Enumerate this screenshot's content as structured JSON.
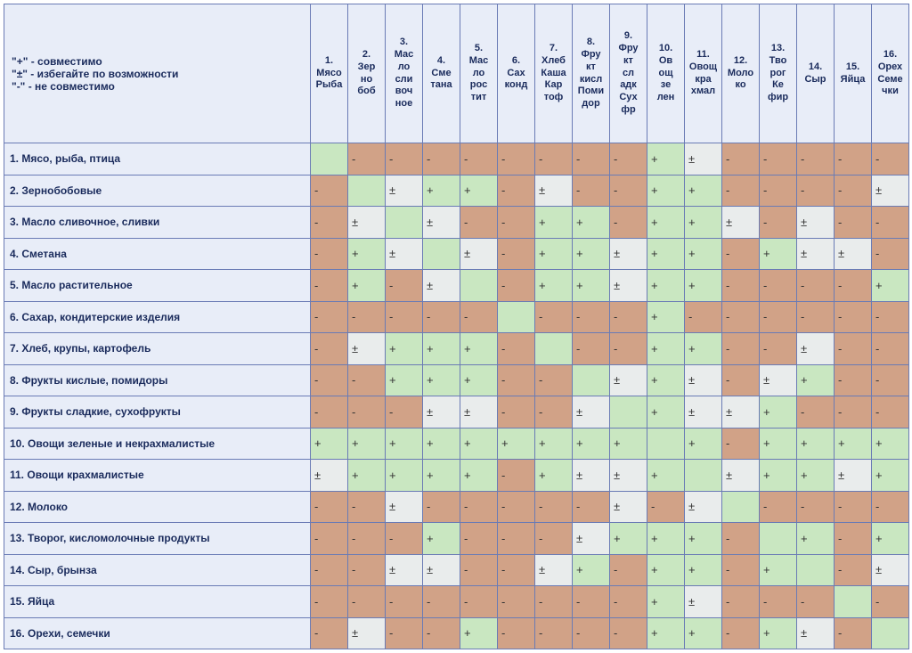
{
  "legend": {
    "plus": "\"+\" - совместимо",
    "pm": "\"±\" - избегайте по возможности",
    "minus": "\"-\" - не совместимо"
  },
  "colors": {
    "plus": "#c9e7c1",
    "minus": "#d1a287",
    "pm": "#e9ecec",
    "diag": "#c9e7c1",
    "header_bg": "#e8edf8",
    "border": "#6a7bb5"
  },
  "cell_font_size": 13,
  "header_font_size": 11,
  "rowlabel_font_size": 12,
  "columns": [
    {
      "num": "1.",
      "lines": [
        "Мясо",
        "Рыба"
      ]
    },
    {
      "num": "2.",
      "lines": [
        "Зер",
        "но",
        "боб"
      ]
    },
    {
      "num": "3.",
      "lines": [
        "Мас",
        "ло",
        "сли",
        "воч",
        "ное"
      ]
    },
    {
      "num": "4.",
      "lines": [
        "Сме",
        "тана"
      ]
    },
    {
      "num": "5.",
      "lines": [
        "Мас",
        "ло",
        "рос",
        "тит"
      ]
    },
    {
      "num": "6.",
      "lines": [
        "Сах",
        "конд"
      ]
    },
    {
      "num": "7.",
      "lines": [
        "Хлеб",
        "Каша",
        "Кар",
        "тоф"
      ]
    },
    {
      "num": "8.",
      "lines": [
        "Фру",
        "кт",
        "кисл",
        "Поми",
        "дор"
      ]
    },
    {
      "num": "9.",
      "lines": [
        "Фру",
        "кт",
        "сл",
        "адк",
        "Сух",
        "фр"
      ]
    },
    {
      "num": "10.",
      "lines": [
        "Ов",
        "ощ",
        "зе",
        "лен"
      ]
    },
    {
      "num": "11.",
      "lines": [
        "Овощ",
        "кра",
        "хмал"
      ]
    },
    {
      "num": "12.",
      "lines": [
        "Моло",
        "ко"
      ]
    },
    {
      "num": "13.",
      "lines": [
        "Тво",
        "рог",
        "Ке",
        "фир"
      ]
    },
    {
      "num": "14.",
      "lines": [
        "Сыр"
      ]
    },
    {
      "num": "15.",
      "lines": [
        "Яйца"
      ]
    },
    {
      "num": "16.",
      "lines": [
        "Орех",
        "Семе",
        "чки"
      ]
    }
  ],
  "rows": [
    "1. Мясо, рыба, птица",
    "2. Зернобобовые",
    "3. Масло сливочное, сливки",
    "4. Сметана",
    "5. Масло растительное",
    "6. Сахар, кондитерские изделия",
    "7. Хлеб, крупы, картофель",
    "8. Фрукты кислые, помидоры",
    "9. Фрукты сладкие, сухофрукты",
    "10. Овощи зеленые и некрахмалистые",
    "11. Овощи крахмалистые",
    "12. Молоко",
    "13. Творог, кисломолочные продукты",
    "14. Сыр, брынза",
    "15. Яйца",
    "16. Орехи, семечки"
  ],
  "matrix": [
    [
      "",
      "-",
      "-",
      "-",
      "-",
      "-",
      "-",
      "-",
      "-",
      "+",
      "±",
      "-",
      "-",
      "-",
      "-",
      "-"
    ],
    [
      "-",
      "",
      "±",
      "+",
      "+",
      "-",
      "±",
      "-",
      "-",
      "+",
      "+",
      "-",
      "-",
      "-",
      "-",
      "±"
    ],
    [
      "-",
      "±",
      "",
      "±",
      "-",
      "-",
      "+",
      "+",
      "-",
      "+",
      "+",
      "±",
      "-",
      "±",
      "-",
      "-"
    ],
    [
      "-",
      "+",
      "±",
      "",
      "±",
      "-",
      "+",
      "+",
      "±",
      "+",
      "+",
      "-",
      "+",
      "±",
      "±",
      "-"
    ],
    [
      "-",
      "+",
      "-",
      "±",
      "",
      "-",
      "+",
      "+",
      "±",
      "+",
      "+",
      "-",
      "-",
      "-",
      "-",
      "+"
    ],
    [
      "-",
      "-",
      "-",
      "-",
      "-",
      "",
      "-",
      "-",
      "-",
      "+",
      "-",
      "-",
      "-",
      "-",
      "-",
      "-"
    ],
    [
      "-",
      "±",
      "+",
      "+",
      "+",
      "-",
      "",
      "-",
      "-",
      "+",
      "+",
      "-",
      "-",
      "±",
      "-",
      "-"
    ],
    [
      "-",
      "-",
      "+",
      "+",
      "+",
      "-",
      "-",
      "",
      "±",
      "+",
      "±",
      "-",
      "±",
      "+",
      "-",
      "-"
    ],
    [
      "-",
      "-",
      "-",
      "±",
      "±",
      "-",
      "-",
      "±",
      "",
      "+",
      "±",
      "±",
      "+",
      "-",
      "-",
      "-"
    ],
    [
      "+",
      "+",
      "+",
      "+",
      "+",
      "+",
      "+",
      "+",
      "+",
      "",
      "+",
      "-",
      "+",
      "+",
      "+",
      "+"
    ],
    [
      "±",
      "+",
      "+",
      "+",
      "+",
      "-",
      "+",
      "±",
      "±",
      "+",
      "",
      "±",
      "+",
      "+",
      "±",
      "+"
    ],
    [
      "-",
      "-",
      "±",
      "-",
      "-",
      "-",
      "-",
      "-",
      "±",
      "-",
      "±",
      "",
      "-",
      "-",
      "-",
      "-"
    ],
    [
      "-",
      "-",
      "-",
      "+",
      "-",
      "-",
      "-",
      "±",
      "+",
      "+",
      "+",
      "-",
      "",
      "+",
      "-",
      "+"
    ],
    [
      "-",
      "-",
      "±",
      "±",
      "-",
      "-",
      "±",
      "+",
      "-",
      "+",
      "+",
      "-",
      "+",
      "",
      "-",
      "±"
    ],
    [
      "-",
      "-",
      "-",
      "-",
      "-",
      "-",
      "-",
      "-",
      "-",
      "+",
      "±",
      "-",
      "-",
      "-",
      "",
      "-"
    ],
    [
      "-",
      "±",
      "-",
      "-",
      "+",
      "-",
      "-",
      "-",
      "-",
      "+",
      "+",
      "-",
      "+",
      "±",
      "-",
      ""
    ]
  ]
}
